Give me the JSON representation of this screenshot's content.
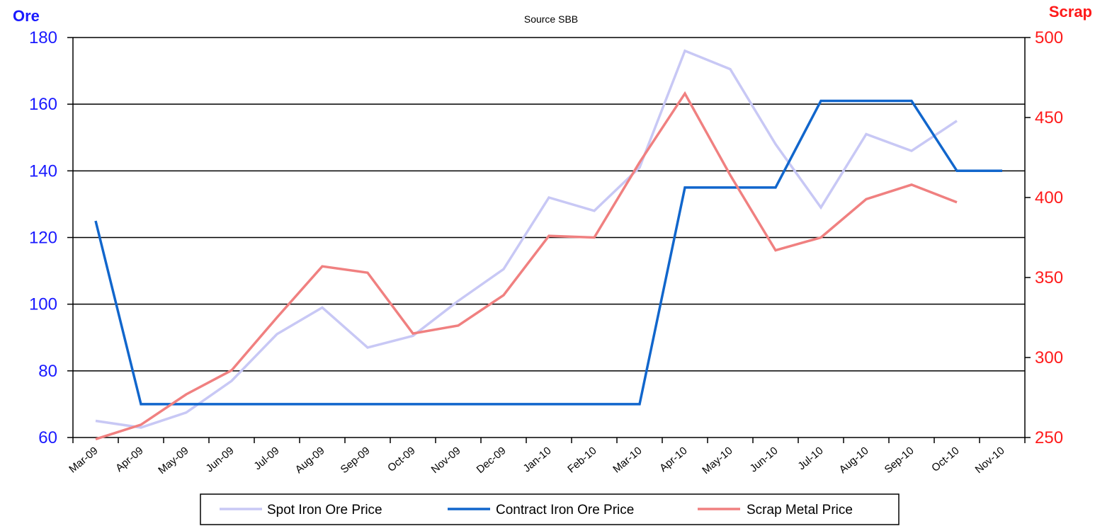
{
  "chart_data": {
    "type": "line",
    "subtitle": "Source SBB",
    "left_axis": {
      "label": "Ore",
      "ylim": [
        60,
        180
      ],
      "ticks": [
        "60",
        "80",
        "100",
        "120",
        "140",
        "160",
        "180"
      ],
      "color": "#1a1aff"
    },
    "right_axis": {
      "label": "Scrap",
      "ylim": [
        250,
        500
      ],
      "ticks": [
        "250",
        "300",
        "350",
        "400",
        "450",
        "500"
      ],
      "color": "#ff1a1a"
    },
    "categories": [
      "Mar-09",
      "Apr-09",
      "May-09",
      "Jun-09",
      "Jul-09",
      "Aug-09",
      "Sep-09",
      "Oct-09",
      "Nov-09",
      "Dec-09",
      "Jan-10",
      "Feb-10",
      "Mar-10",
      "Apr-10",
      "May-10",
      "Jun-10",
      "Jul-10",
      "Aug-10",
      "Sep-10",
      "Oct-10",
      "Nov-10"
    ],
    "grid": true,
    "legend_position": "bottom",
    "series": [
      {
        "name": "Spot Iron Ore Price",
        "axis": "left",
        "color": "#c8c8f5",
        "x": [
          "Mar-09",
          "Apr-09",
          "May-09",
          "Jun-09",
          "Jul-09",
          "Aug-09",
          "Sep-09",
          "Oct-09",
          "Nov-09",
          "Dec-09",
          "Jan-10",
          "Feb-10",
          "Mar-10",
          "Apr-10",
          "May-10",
          "Jun-10",
          "Jul-10",
          "Aug-10",
          "Sep-10",
          "Oct-10"
        ],
        "values": [
          65,
          63,
          67.5,
          77,
          91,
          99,
          87,
          90.5,
          101,
          110.5,
          132,
          128,
          141,
          176,
          170.5,
          148,
          129,
          151,
          146,
          155
        ]
      },
      {
        "name": "Contract Iron Ore Price",
        "axis": "left",
        "color": "#1166cc",
        "x": [
          "Mar-09",
          "Apr-09",
          "May-09",
          "Jun-09",
          "Jul-09",
          "Aug-09",
          "Sep-09",
          "Oct-09",
          "Nov-09",
          "Dec-09",
          "Jan-10",
          "Feb-10",
          "Mar-10",
          "Apr-10",
          "May-10",
          "Jun-10",
          "Jul-10",
          "Aug-10",
          "Sep-10",
          "Oct-10",
          "Nov-10"
        ],
        "values": [
          125,
          70,
          70,
          70,
          70,
          70,
          70,
          70,
          70,
          70,
          70,
          70,
          70,
          135,
          135,
          135,
          161,
          161,
          161,
          140,
          140
        ]
      },
      {
        "name": "Scrap Metal Price",
        "axis": "right",
        "color": "#f08080",
        "x": [
          "Mar-09",
          "Apr-09",
          "May-09",
          "Jun-09",
          "Jul-09",
          "Aug-09",
          "Sep-09",
          "Oct-09",
          "Nov-09",
          "Dec-09",
          "Jan-10",
          "Feb-10",
          "Mar-10",
          "Apr-10",
          "May-10",
          "Jun-10",
          "Jul-10",
          "Aug-10",
          "Sep-10",
          "Oct-10"
        ],
        "values": [
          249,
          258,
          277,
          292,
          325,
          357,
          353,
          315,
          320,
          339,
          376,
          375,
          422,
          465,
          414,
          367,
          375,
          399,
          408,
          397
        ]
      }
    ]
  }
}
